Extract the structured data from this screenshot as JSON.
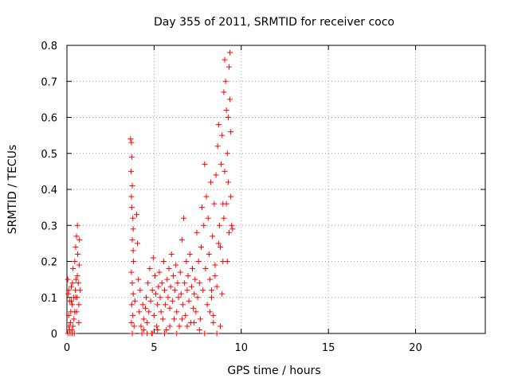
{
  "chart_data": {
    "type": "scatter",
    "title": "Day 355 of 2011, SRMTID for receiver coco",
    "xlabel": "GPS time / hours",
    "ylabel": "SRMTID / TECUs",
    "xlim": [
      0,
      24
    ],
    "ylim": [
      0,
      0.8
    ],
    "xticks": [
      0,
      5,
      10,
      15,
      20
    ],
    "yticks": [
      0,
      0.1,
      0.2,
      0.3,
      0.4,
      0.5,
      0.6,
      0.7,
      0.8
    ],
    "xtick_labels": [
      "0",
      "5",
      "10",
      "15",
      "20"
    ],
    "ytick_labels": [
      "0",
      "0.1",
      "0.2",
      "0.3",
      "0.4",
      "0.5",
      "0.6",
      "0.7",
      "0.8"
    ],
    "marker": "+",
    "color": "#ff0000",
    "grid": true,
    "series": [
      {
        "name": "SRMTID",
        "points": [
          [
            0.05,
            0.15
          ],
          [
            0.08,
            0.11
          ],
          [
            0.1,
            0.05
          ],
          [
            0.12,
            0.02
          ],
          [
            0.15,
            0.09
          ],
          [
            0.18,
            0.0
          ],
          [
            0.2,
            0.03
          ],
          [
            0.22,
            0.06
          ],
          [
            0.25,
            0.13
          ],
          [
            0.28,
            0.01
          ],
          [
            0.3,
            0.08
          ],
          [
            0.32,
            0.14
          ],
          [
            0.35,
            0.18
          ],
          [
            0.38,
            0.1
          ],
          [
            0.4,
            0.04
          ],
          [
            0.42,
            0.0
          ],
          [
            0.45,
            0.2
          ],
          [
            0.48,
            0.12
          ],
          [
            0.5,
            0.24
          ],
          [
            0.52,
            0.15
          ],
          [
            0.55,
            0.27
          ],
          [
            0.58,
            0.1
          ],
          [
            0.6,
            0.3
          ],
          [
            0.62,
            0.22
          ],
          [
            0.65,
            0.14
          ],
          [
            0.68,
            0.08
          ],
          [
            0.7,
            0.19
          ],
          [
            0.72,
            0.26
          ],
          [
            0.75,
            0.12
          ],
          [
            0.1,
            0.12
          ],
          [
            0.3,
            0.0
          ],
          [
            0.55,
            0.06
          ],
          [
            0.05,
            0.0
          ],
          [
            0.15,
            0.01
          ],
          [
            0.35,
            0.02
          ],
          [
            0.6,
            0.16
          ],
          [
            0.5,
            0.1
          ],
          [
            0.25,
            0.09
          ],
          [
            0.45,
            0.06
          ],
          [
            0.68,
            0.03
          ],
          [
            3.65,
            0.54
          ],
          [
            3.7,
            0.53
          ],
          [
            3.72,
            0.49
          ],
          [
            3.68,
            0.45
          ],
          [
            3.75,
            0.41
          ],
          [
            3.7,
            0.38
          ],
          [
            3.72,
            0.35
          ],
          [
            3.78,
            0.32
          ],
          [
            3.8,
            0.29
          ],
          [
            3.75,
            0.26
          ],
          [
            3.8,
            0.23
          ],
          [
            3.82,
            0.2
          ],
          [
            3.7,
            0.17
          ],
          [
            3.75,
            0.14
          ],
          [
            3.8,
            0.11
          ],
          [
            3.72,
            0.08
          ],
          [
            3.78,
            0.05
          ],
          [
            3.7,
            0.03
          ],
          [
            3.75,
            0.0
          ],
          [
            3.85,
            0.02
          ],
          [
            3.9,
            0.09
          ],
          [
            4.0,
            0.33
          ],
          [
            4.05,
            0.25
          ],
          [
            4.1,
            0.15
          ],
          [
            4.2,
            0.12
          ],
          [
            4.15,
            0.06
          ],
          [
            4.25,
            0.02
          ],
          [
            4.3,
            0.0
          ],
          [
            4.35,
            0.08
          ],
          [
            4.4,
            0.04
          ],
          [
            4.5,
            0.07
          ],
          [
            4.55,
            0.1
          ],
          [
            4.6,
            0.03
          ],
          [
            4.65,
            0.14
          ],
          [
            4.7,
            0.06
          ],
          [
            4.75,
            0.18
          ],
          [
            4.8,
            0.09
          ],
          [
            4.85,
            0.0
          ],
          [
            4.9,
            0.12
          ],
          [
            4.95,
            0.21
          ],
          [
            5.0,
            0.05
          ],
          [
            5.05,
            0.16
          ],
          [
            5.1,
            0.11
          ],
          [
            5.15,
            0.02
          ],
          [
            5.2,
            0.08
          ],
          [
            5.25,
            0.13
          ],
          [
            5.3,
            0.17
          ],
          [
            5.35,
            0.1
          ],
          [
            5.4,
            0.06
          ],
          [
            5.45,
            0.14
          ],
          [
            5.5,
            0.04
          ],
          [
            5.55,
            0.2
          ],
          [
            5.6,
            0.12
          ],
          [
            5.65,
            0.08
          ],
          [
            5.7,
            0.01
          ],
          [
            5.75,
            0.15
          ],
          [
            5.8,
            0.1
          ],
          [
            5.85,
            0.18
          ],
          [
            5.9,
            0.07
          ],
          [
            5.95,
            0.13
          ],
          [
            6.0,
            0.22
          ],
          [
            6.05,
            0.09
          ],
          [
            6.1,
            0.16
          ],
          [
            6.15,
            0.04
          ],
          [
            6.2,
            0.12
          ],
          [
            6.25,
            0.19
          ],
          [
            6.3,
            0.06
          ],
          [
            6.35,
            0.14
          ],
          [
            6.4,
            0.1
          ],
          [
            6.45,
            0.02
          ],
          [
            6.5,
            0.17
          ],
          [
            6.55,
            0.11
          ],
          [
            6.6,
            0.26
          ],
          [
            6.65,
            0.08
          ],
          [
            6.7,
            0.32
          ],
          [
            6.75,
            0.14
          ],
          [
            6.8,
            0.05
          ],
          [
            6.85,
            0.2
          ],
          [
            6.9,
            0.12
          ],
          [
            6.95,
            0.16
          ],
          [
            7.0,
            0.09
          ],
          [
            7.05,
            0.22
          ],
          [
            7.1,
            0.03
          ],
          [
            7.15,
            0.13
          ],
          [
            7.2,
            0.18
          ],
          [
            7.25,
            0.07
          ],
          [
            7.3,
            0.11
          ],
          [
            7.35,
            0.15
          ],
          [
            7.4,
            0.06
          ],
          [
            7.45,
            0.28
          ],
          [
            7.5,
            0.1
          ],
          [
            7.55,
            0.2
          ],
          [
            7.6,
            0.14
          ],
          [
            7.65,
            0.04
          ],
          [
            7.7,
            0.24
          ],
          [
            7.75,
            0.35
          ],
          [
            7.8,
            0.12
          ],
          [
            7.85,
            0.3
          ],
          [
            7.9,
            0.47
          ],
          [
            7.95,
            0.18
          ],
          [
            8.0,
            0.38
          ],
          [
            8.05,
            0.08
          ],
          [
            8.1,
            0.32
          ],
          [
            8.15,
            0.22
          ],
          [
            8.2,
            0.15
          ],
          [
            8.25,
            0.42
          ],
          [
            8.3,
            0.1
          ],
          [
            8.35,
            0.27
          ],
          [
            8.4,
            0.05
          ],
          [
            8.45,
            0.36
          ],
          [
            8.5,
            0.19
          ],
          [
            8.55,
            0.44
          ],
          [
            8.6,
            0.13
          ],
          [
            8.65,
            0.52
          ],
          [
            8.7,
            0.58
          ],
          [
            8.75,
            0.3
          ],
          [
            8.8,
            0.24
          ],
          [
            8.85,
            0.47
          ],
          [
            8.9,
            0.55
          ],
          [
            8.95,
            0.36
          ],
          [
            9.0,
            0.67
          ],
          [
            9.05,
            0.76
          ],
          [
            9.1,
            0.7
          ],
          [
            9.15,
            0.62
          ],
          [
            9.2,
            0.5
          ],
          [
            9.25,
            0.42
          ],
          [
            9.3,
            0.74
          ],
          [
            9.35,
            0.78
          ],
          [
            9.4,
            0.56
          ],
          [
            9.45,
            0.3
          ],
          [
            9.5,
            0.29
          ],
          [
            9.35,
            0.65
          ],
          [
            9.25,
            0.6
          ],
          [
            9.15,
            0.36
          ],
          [
            9.05,
            0.45
          ],
          [
            8.95,
            0.2
          ],
          [
            8.8,
            0.02
          ],
          [
            8.6,
            0.0
          ],
          [
            8.4,
            0.03
          ],
          [
            8.2,
            0.06
          ],
          [
            7.9,
            0.0
          ],
          [
            7.6,
            0.01
          ],
          [
            7.3,
            0.03
          ],
          [
            6.9,
            0.02
          ],
          [
            6.6,
            0.04
          ],
          [
            6.3,
            0.0
          ],
          [
            5.9,
            0.02
          ],
          [
            5.6,
            0.0
          ],
          [
            5.2,
            0.01
          ],
          [
            4.9,
            0.0
          ],
          [
            4.6,
            0.0
          ],
          [
            4.4,
            0.01
          ],
          [
            8.7,
            0.25
          ],
          [
            9.0,
            0.32
          ],
          [
            9.2,
            0.2
          ],
          [
            9.4,
            0.38
          ],
          [
            8.5,
            0.16
          ],
          [
            8.3,
            0.12
          ],
          [
            8.9,
            0.11
          ],
          [
            9.3,
            0.28
          ]
        ]
      }
    ]
  }
}
